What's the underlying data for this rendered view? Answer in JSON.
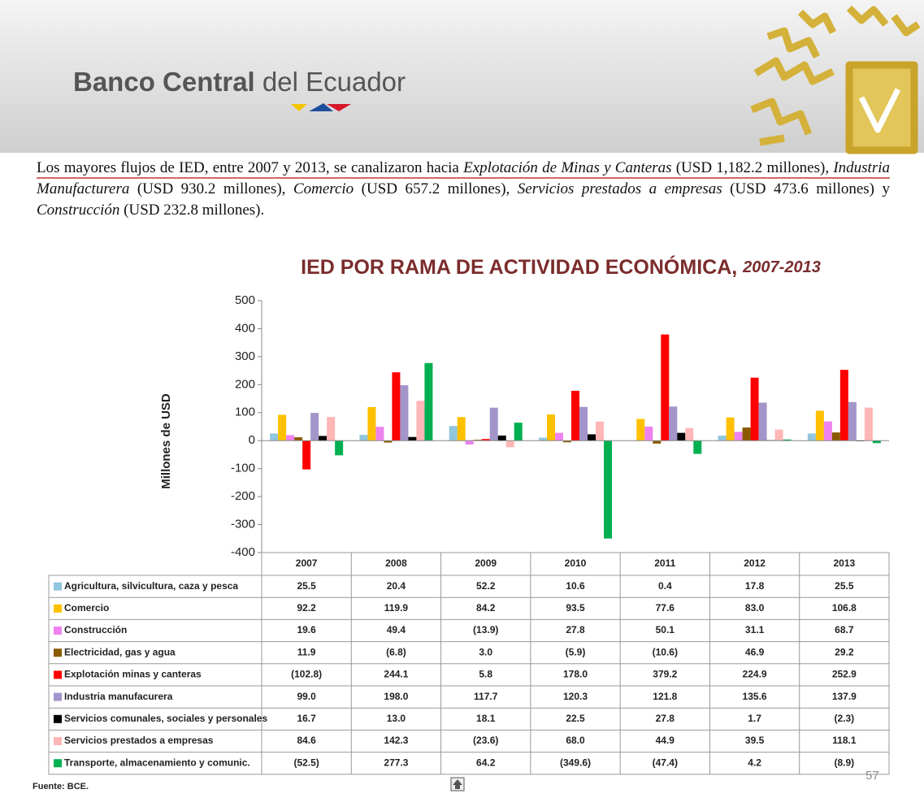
{
  "header": {
    "brand_bold": "Banco Central",
    "brand": "del Ecuador"
  },
  "paragraph": [
    "Los mayores flujos de IED, entre 2007 y 2013, se canalizaron hacia ",
    "Explotación de Minas y Canteras",
    " (USD 1,182.2 millones), ",
    "Industria Manufacturera",
    " (USD 930.2 millones), ",
    "Comercio",
    " (USD 657.2 millones), ",
    "Servicios prestados a empresas",
    " (USD 473.6 millones) y ",
    "Construcción",
    " (USD 232.8 millones)."
  ],
  "chart_data": {
    "type": "bar",
    "title": "IED POR RAMA DE ACTIVIDAD ECONÓMICA,",
    "title_years": "2007-2013",
    "y_label": "Millones de USD",
    "categories": [
      "2007",
      "2008",
      "2009",
      "2010",
      "2011",
      "2012",
      "2013"
    ],
    "ylim": [
      -400,
      500
    ],
    "yticks": [
      -400,
      -300,
      -200,
      -100,
      0,
      100,
      200,
      300,
      400,
      500
    ],
    "series": [
      {
        "name": "Agricultura, silvicultura, caza y pesca",
        "color": "#92c5de",
        "values": [
          25.5,
          20.4,
          52.2,
          10.6,
          0.4,
          17.8,
          25.5
        ],
        "value_labels": [
          "25.5",
          "20.4",
          "52.2",
          "10.6",
          "0.4",
          "17.8",
          "25.5"
        ]
      },
      {
        "name": "Comercio",
        "color": "#ffc000",
        "values": [
          92.2,
          119.9,
          84.2,
          93.5,
          77.6,
          83.0,
          106.8
        ],
        "value_labels": [
          "92.2",
          "119.9",
          "84.2",
          "93.5",
          "77.6",
          "83.0",
          "106.8"
        ]
      },
      {
        "name": "Construcción",
        "color": "#ee82ee",
        "values": [
          19.6,
          49.4,
          -13.9,
          27.8,
          50.1,
          31.1,
          68.7
        ],
        "value_labels": [
          "19.6",
          "49.4",
          "(13.9)",
          "27.8",
          "50.1",
          "31.1",
          "68.7"
        ]
      },
      {
        "name": "Electricidad, gas y agua",
        "color": "#8b5a00",
        "values": [
          11.9,
          -6.8,
          3.0,
          -5.9,
          -10.6,
          46.9,
          29.2
        ],
        "value_labels": [
          "11.9",
          "(6.8)",
          "3.0",
          "(5.9)",
          "(10.6)",
          "46.9",
          "29.2"
        ]
      },
      {
        "name": "Explotación minas y canteras",
        "color": "#ff0000",
        "values": [
          -102.8,
          244.1,
          5.8,
          178.0,
          379.2,
          224.9,
          252.9
        ],
        "value_labels": [
          "(102.8)",
          "244.1",
          "5.8",
          "178.0",
          "379.2",
          "224.9",
          "252.9"
        ]
      },
      {
        "name": "Industria manufacurera",
        "color": "#a395c9",
        "values": [
          99.0,
          198.0,
          117.7,
          120.3,
          121.8,
          135.6,
          137.9
        ],
        "value_labels": [
          "99.0",
          "198.0",
          "117.7",
          "120.3",
          "121.8",
          "135.6",
          "137.9"
        ]
      },
      {
        "name": "Servicios comunales, sociales y personales",
        "color": "#000000",
        "values": [
          16.7,
          13.0,
          18.1,
          22.5,
          27.8,
          1.7,
          -2.3
        ],
        "value_labels": [
          "16.7",
          "13.0",
          "18.1",
          "22.5",
          "27.8",
          "1.7",
          "(2.3)"
        ]
      },
      {
        "name": "Servicios prestados a empresas",
        "color": "#ffb6b6",
        "values": [
          84.6,
          142.3,
          -23.6,
          68.0,
          44.9,
          39.5,
          118.1
        ],
        "value_labels": [
          "84.6",
          "142.3",
          "(23.6)",
          "68.0",
          "44.9",
          "39.5",
          "118.1"
        ]
      },
      {
        "name": "Transporte, almacenamiento y comunic.",
        "color": "#00b050",
        "values": [
          -52.5,
          277.3,
          64.2,
          -349.6,
          -47.4,
          4.2,
          -8.9
        ],
        "value_labels": [
          "(52.5)",
          "277.3",
          "64.2",
          "(349.6)",
          "(47.4)",
          "4.2",
          "(8.9)"
        ]
      }
    ]
  },
  "source": "Fuente: BCE.",
  "page_number": 57
}
